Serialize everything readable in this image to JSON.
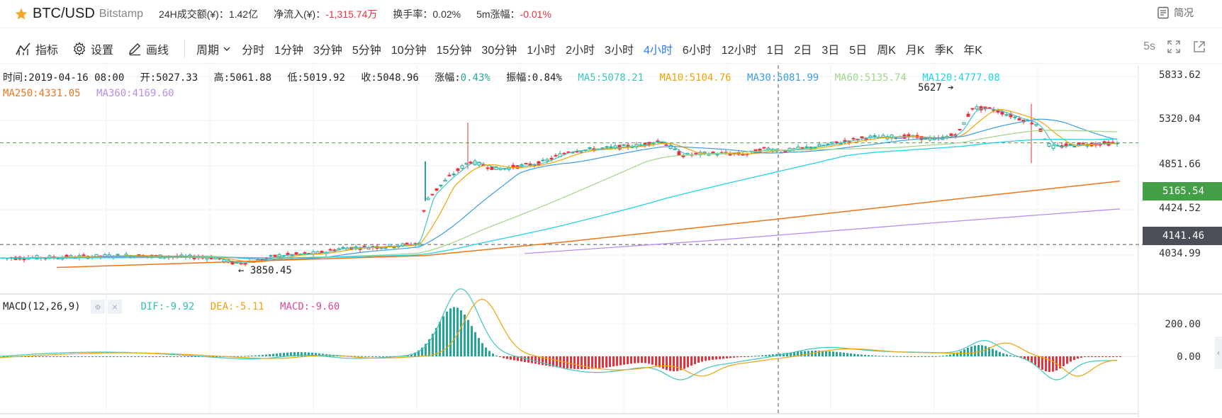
{
  "header": {
    "symbol": "BTC/USD",
    "exchange": "Bitstamp",
    "stats": [
      {
        "label": "24H成交额(¥)：",
        "value": "1.42亿",
        "neg": false
      },
      {
        "label": "净流入(¥)：",
        "value": "-1,315.74万",
        "neg": true
      },
      {
        "label": "换手率：",
        "value": "0.02%",
        "neg": false
      },
      {
        "label": "5m涨幅：",
        "value": "-0.01%",
        "neg": true
      }
    ],
    "summary_label": "简况"
  },
  "toolbar": {
    "indicator_label": "指标",
    "settings_label": "设置",
    "draw_label": "画线",
    "period_label": "周期",
    "periods": [
      "分时",
      "1分钟",
      "3分钟",
      "5分钟",
      "10分钟",
      "15分钟",
      "30分钟",
      "1小时",
      "2小时",
      "3小时",
      "4小时",
      "6小时",
      "12小时",
      "1日",
      "2日",
      "3日",
      "5日",
      "周K",
      "月K",
      "季K",
      "年K"
    ],
    "active_period": "4小时",
    "refresh_label": "5s"
  },
  "info": {
    "time": "时间:2019-04-16 08:00",
    "open": "开:5027.33",
    "high": "高:5061.88",
    "low": "低:5019.92",
    "close": "收:5048.96",
    "change_label": "涨幅:",
    "change_value": "0.43%",
    "amplitude": "振幅:0.84%",
    "ma5": "MA5:5078.21",
    "ma10": "MA10:5104.76",
    "ma30": "MA30:5081.99",
    "ma60": "MA60:5135.74",
    "ma120": "MA120:4777.08",
    "ma250": "MA250:4331.05",
    "ma360": "MA360:4169.60"
  },
  "price_axis": [
    "5833.62",
    "5320.04",
    "4851.66",
    "4424.52",
    "4034.99"
  ],
  "price_tags": {
    "current": "5165.54",
    "cursor": "4141.46"
  },
  "markers": {
    "high": "5627",
    "low": "3850.45"
  },
  "macd": {
    "title": "MACD(12,26,9)",
    "dif": "DIF:-9.92",
    "dea": "DEA:-5.11",
    "macd": "MACD:-9.60",
    "axis": [
      "200.00",
      "0.00"
    ]
  },
  "colors": {
    "up": "#26a69a",
    "down": "#e8323b",
    "ma5": "#3fc6c0",
    "ma10": "#f0a30a",
    "ma30": "#3d9ee0",
    "ma60": "#9fd58a",
    "ma120": "#22d3e6",
    "ma250": "#f07418",
    "ma360": "#b78ef0",
    "active": "#2f7bf5",
    "current_tag": "#43a047",
    "cursor_tag": "#4a4f57"
  }
}
